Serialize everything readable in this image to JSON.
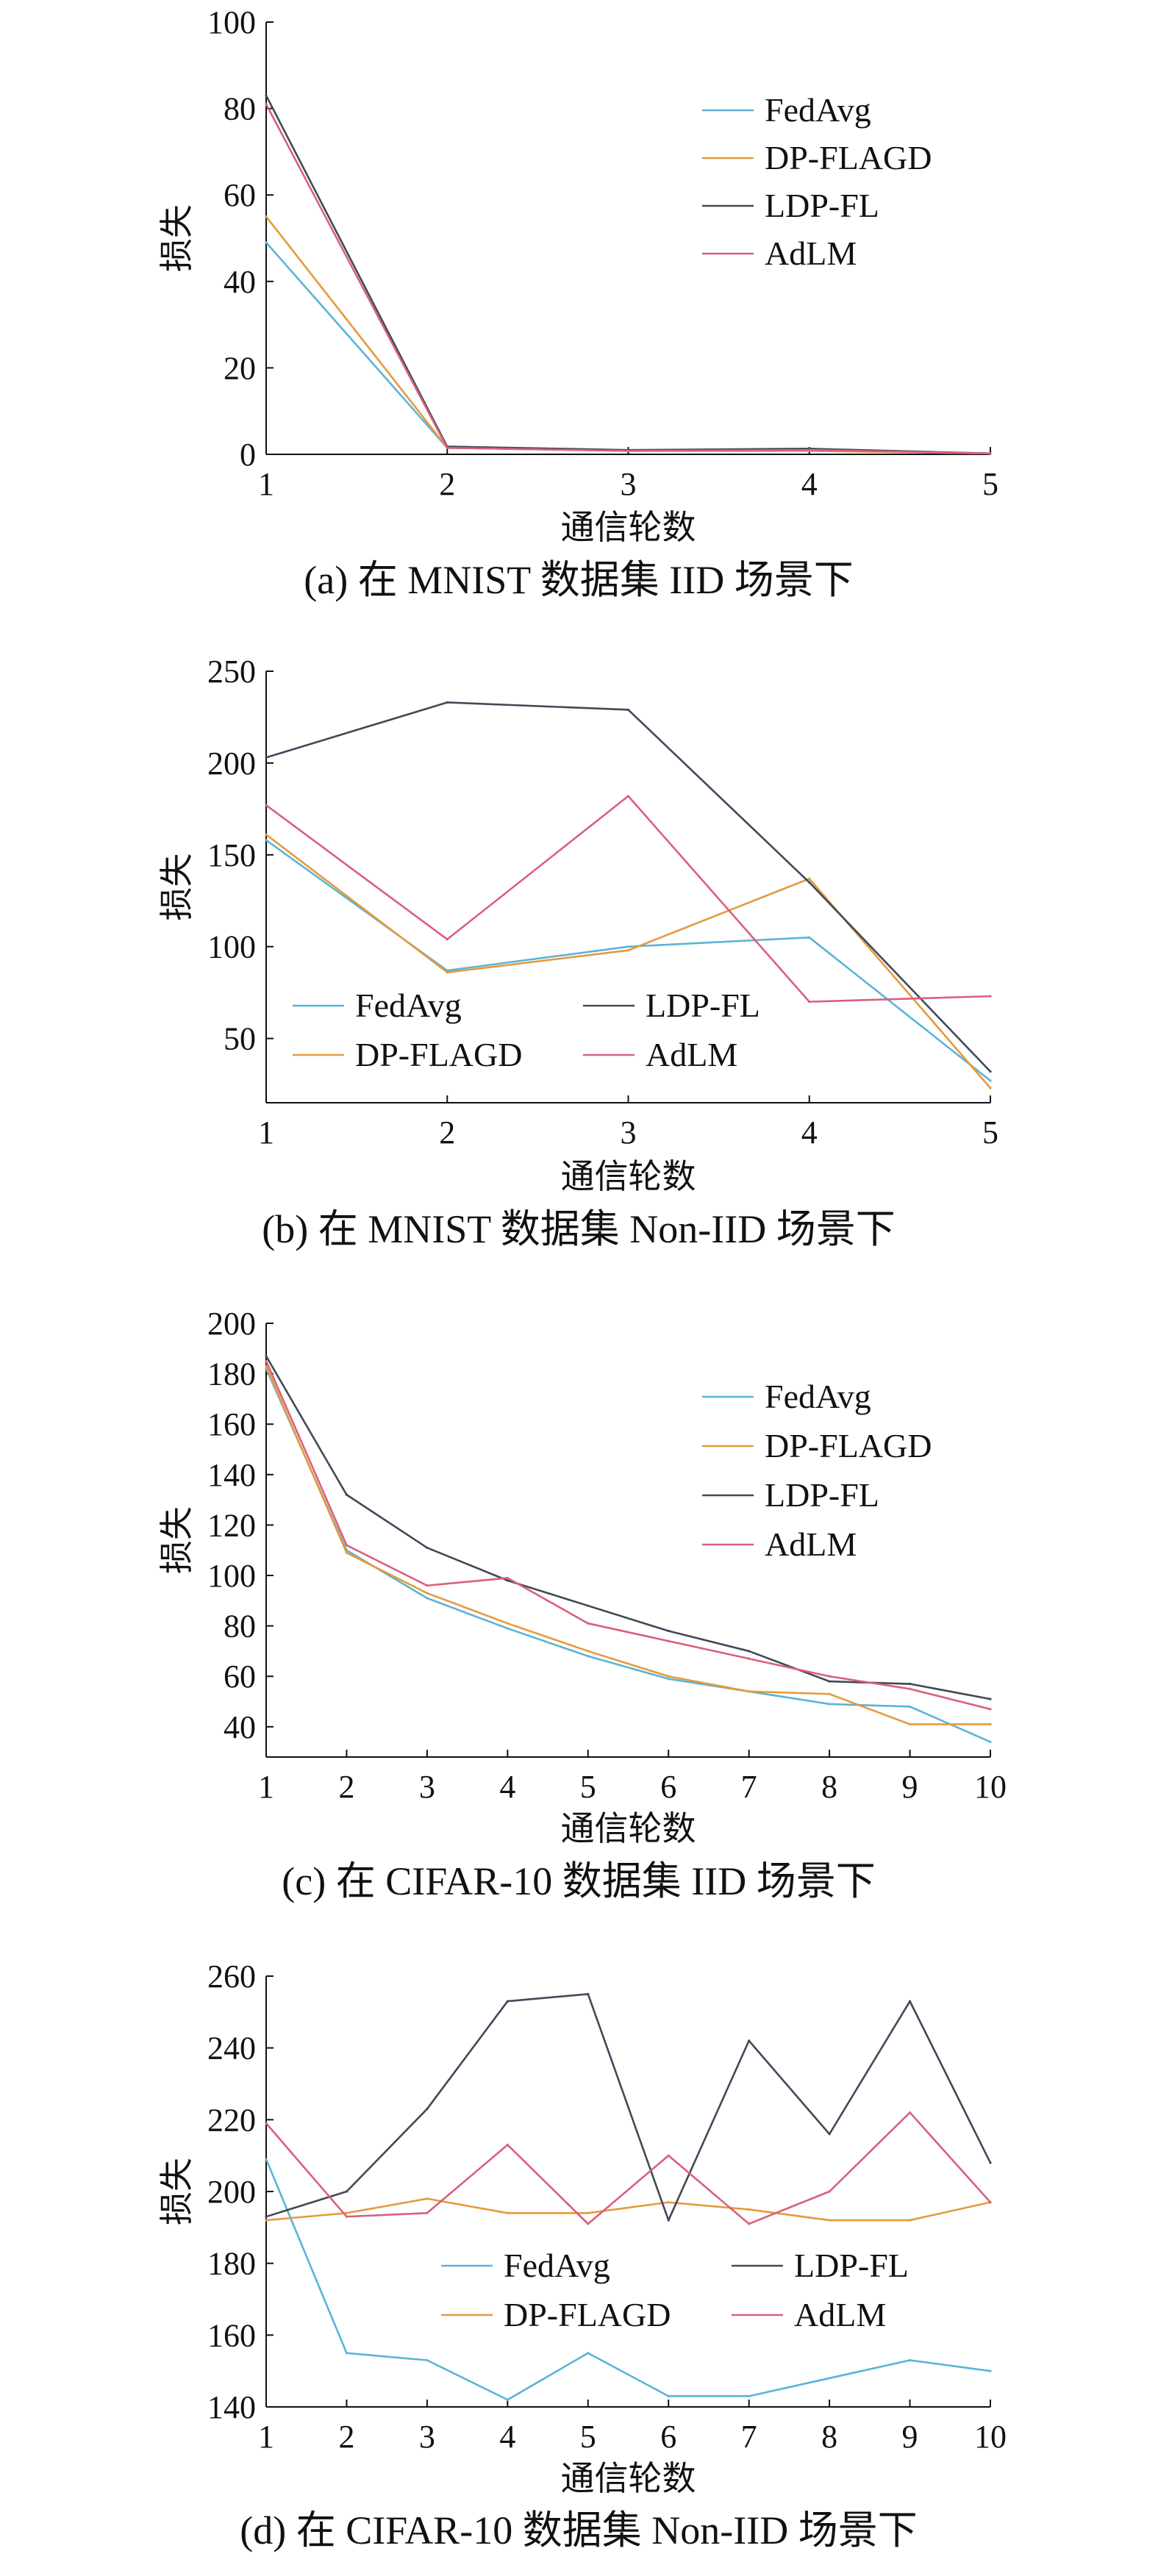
{
  "colors": {
    "FedAvg": "#5ab4d6",
    "DP-FLAGD": "#e59a3c",
    "LDP-FL": "#3f4a58",
    "AdLM": "#d9607c"
  },
  "chart_data": [
    {
      "type": "line",
      "caption": "(a) 在 MNIST 数据集 IID 场景下",
      "xlabel": "通信轮数",
      "ylabel": "损失",
      "x": [
        1,
        2,
        3,
        4,
        5
      ],
      "xticks": [
        "1",
        "2",
        "3",
        "4",
        "5"
      ],
      "ylim": [
        0,
        100
      ],
      "yticks": [
        "0",
        "20",
        "40",
        "60",
        "80",
        "100"
      ],
      "legend_position": "top-right",
      "series": [
        {
          "name": "FedAvg",
          "values": [
            49,
            1.5,
            0.8,
            0.8,
            0.2
          ]
        },
        {
          "name": "DP-FLAGD",
          "values": [
            55,
            1.5,
            0.8,
            0.8,
            0.2
          ]
        },
        {
          "name": "LDP-FL",
          "values": [
            83,
            1.8,
            1.0,
            1.3,
            0.2
          ]
        },
        {
          "name": "AdLM",
          "values": [
            81,
            1.5,
            0.8,
            1.0,
            0.2
          ]
        }
      ]
    },
    {
      "type": "line",
      "caption": "(b)  在 MNIST 数据集 Non-IID 场景下",
      "xlabel": "通信轮数",
      "ylabel": "损失",
      "x": [
        1,
        2,
        3,
        4,
        5
      ],
      "xticks": [
        "1",
        "2",
        "3",
        "4",
        "5"
      ],
      "ylim": [
        15,
        250
      ],
      "yticks": [
        "50",
        "100",
        "150",
        "200",
        "250"
      ],
      "legend_position": "bottom-left",
      "series": [
        {
          "name": "FedAvg",
          "values": [
            158,
            87,
            100,
            105,
            27
          ]
        },
        {
          "name": "DP-FLAGD",
          "values": [
            161,
            86,
            98,
            137,
            23
          ]
        },
        {
          "name": "LDP-FL",
          "values": [
            203,
            233,
            229,
            135,
            32
          ]
        },
        {
          "name": "AdLM",
          "values": [
            177,
            104,
            182,
            70,
            73
          ]
        }
      ]
    },
    {
      "type": "line",
      "caption": "(c) 在 CIFAR-10 数据集 IID 场景下",
      "xlabel": "通信轮数",
      "ylabel": "损失",
      "x": [
        1,
        2,
        3,
        4,
        5,
        6,
        7,
        8,
        9,
        10
      ],
      "xticks": [
        "1",
        "2",
        "3",
        "4",
        "5",
        "6",
        "7",
        "8",
        "9",
        "10"
      ],
      "ylim": [
        28,
        200
      ],
      "yticks": [
        "40",
        "60",
        "80",
        "100",
        "120",
        "140",
        "160",
        "180",
        "200"
      ],
      "legend_position": "top-right",
      "series": [
        {
          "name": "FedAvg",
          "values": [
            182,
            110,
            91,
            79,
            68,
            59,
            54,
            49,
            48,
            34
          ]
        },
        {
          "name": "DP-FLAGD",
          "values": [
            183,
            109,
            93,
            81,
            70,
            60,
            54,
            53,
            41,
            41
          ]
        },
        {
          "name": "LDP-FL",
          "values": [
            187,
            132,
            111,
            98,
            88,
            78,
            70,
            58,
            57,
            51
          ]
        },
        {
          "name": "AdLM",
          "values": [
            185,
            112,
            96,
            99,
            81,
            74,
            67,
            60,
            55,
            47
          ]
        }
      ]
    },
    {
      "type": "line",
      "caption": "(d) 在 CIFAR-10 数据集 Non-IID 场景下",
      "xlabel": "通信轮数",
      "ylabel": "损失",
      "x": [
        1,
        2,
        3,
        4,
        5,
        6,
        7,
        8,
        9,
        10
      ],
      "xticks": [
        "1",
        "2",
        "3",
        "4",
        "5",
        "6",
        "7",
        "8",
        "9",
        "10"
      ],
      "ylim": [
        140,
        260
      ],
      "yticks": [
        "140",
        "160",
        "180",
        "200",
        "220",
        "240",
        "260"
      ],
      "legend_position": "bottom-center",
      "series": [
        {
          "name": "FedAvg",
          "values": [
            209,
            155,
            153,
            142,
            155,
            143,
            143,
            148,
            153,
            150
          ]
        },
        {
          "name": "DP-FLAGD",
          "values": [
            192,
            194,
            198,
            194,
            194,
            197,
            195,
            192,
            192,
            197
          ]
        },
        {
          "name": "LDP-FL",
          "values": [
            193,
            200,
            223,
            253,
            255,
            192,
            242,
            216,
            253,
            208
          ]
        },
        {
          "name": "AdLM",
          "values": [
            219,
            193,
            194,
            213,
            191,
            210,
            191,
            200,
            222,
            197
          ]
        }
      ]
    }
  ]
}
